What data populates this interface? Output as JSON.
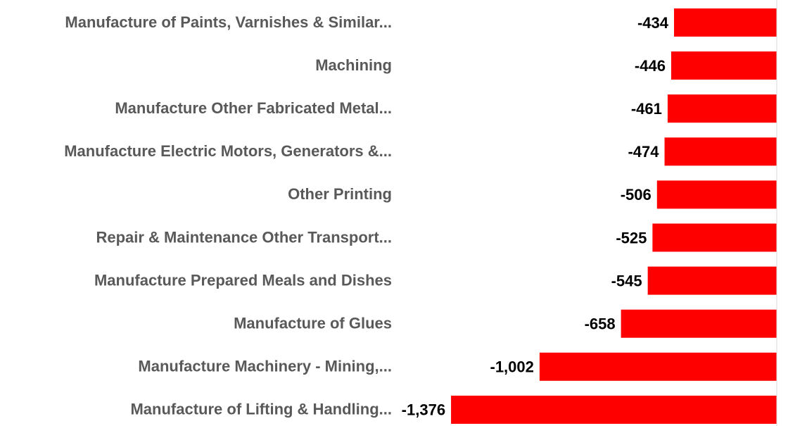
{
  "chart_data": {
    "type": "bar",
    "orientation": "horizontal",
    "color": "#ff0000",
    "categories": [
      "Manufacture of Paints, Varnishes & Similar...",
      "Machining",
      "Manufacture Other Fabricated Metal...",
      "Manufacture Electric Motors, Generators &...",
      "Other Printing",
      "Repair & Maintenance Other Transport...",
      "Manufacture Prepared Meals and Dishes",
      "Manufacture of Glues",
      "Manufacture Machinery - Mining,...",
      "Manufacture of Lifting & Handling..."
    ],
    "values": [
      -434,
      -446,
      -461,
      -474,
      -506,
      -525,
      -545,
      -658,
      -1002,
      -1376
    ],
    "value_labels": [
      "-434",
      "-446",
      "-461",
      "-474",
      "-506",
      "-525",
      "-545",
      "-658",
      "-1,002",
      "-1,376"
    ],
    "xlim": [
      -1400,
      0
    ]
  }
}
